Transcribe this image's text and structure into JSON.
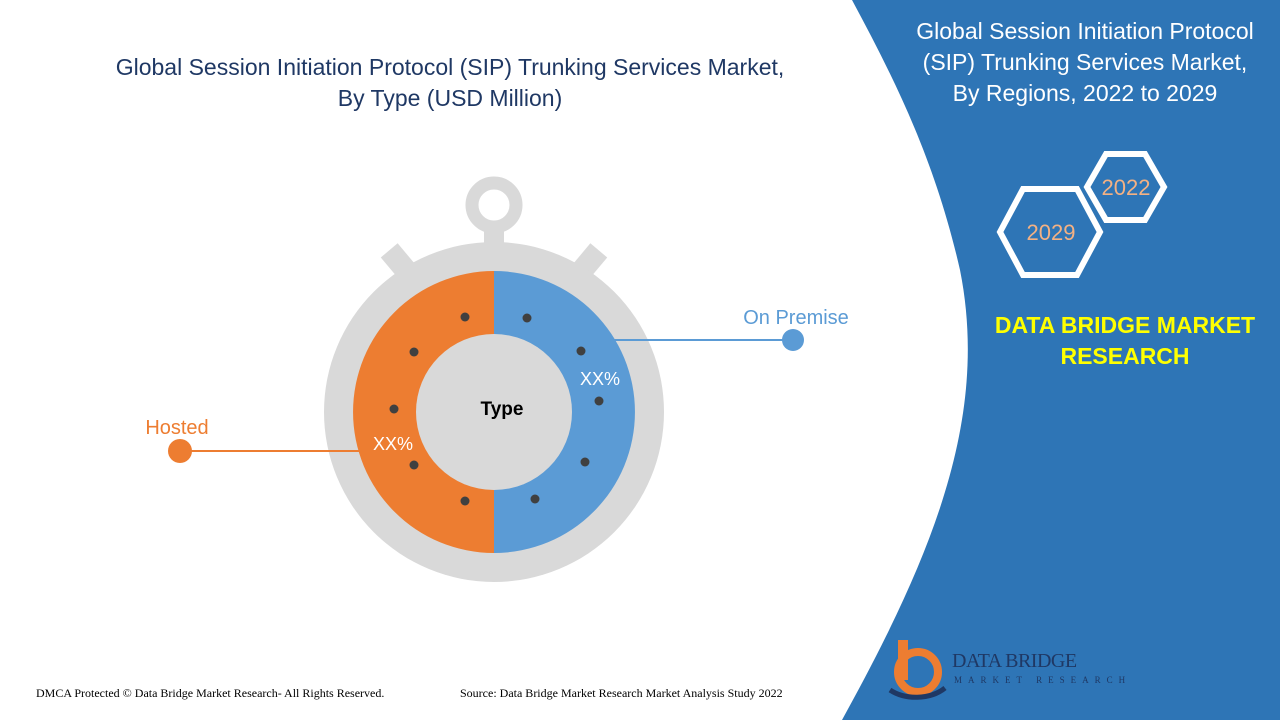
{
  "header": {
    "left_title_line1": "Global Session Initiation Protocol (SIP) Trunking Services Market,",
    "left_title_line2": "By Type (USD Million)",
    "right_title_line1": "Global Session Initiation Protocol",
    "right_title_line2": "(SIP) Trunking Services Market,",
    "right_title_line3": "By Regions, 2022 to 2029"
  },
  "years": {
    "start": "2022",
    "end": "2029"
  },
  "brand": {
    "line1": "DATA BRIDGE MARKET",
    "line2": "RESEARCH"
  },
  "logo": {
    "name": "DATA BRIDGE",
    "sub": "MARKET RESEARCH"
  },
  "footer": {
    "left": "DMCA Protected © Data Bridge Market Research- All Rights Reserved.",
    "right": "Source: Data Bridge Market Research Market Analysis Study 2022"
  },
  "colors": {
    "hosted": "#ed7d31",
    "on_premise": "#5b9bd5",
    "panel": "#2e75b6",
    "title": "#1f3864",
    "ring": "#d9d9d9",
    "brand_text": "#ffff00"
  },
  "chart_data": {
    "type": "pie",
    "center_label": "Type",
    "categories": [
      "Hosted",
      "On Premise"
    ],
    "values": [
      50,
      50
    ],
    "data_labels": [
      "XX%",
      "XX%"
    ]
  }
}
